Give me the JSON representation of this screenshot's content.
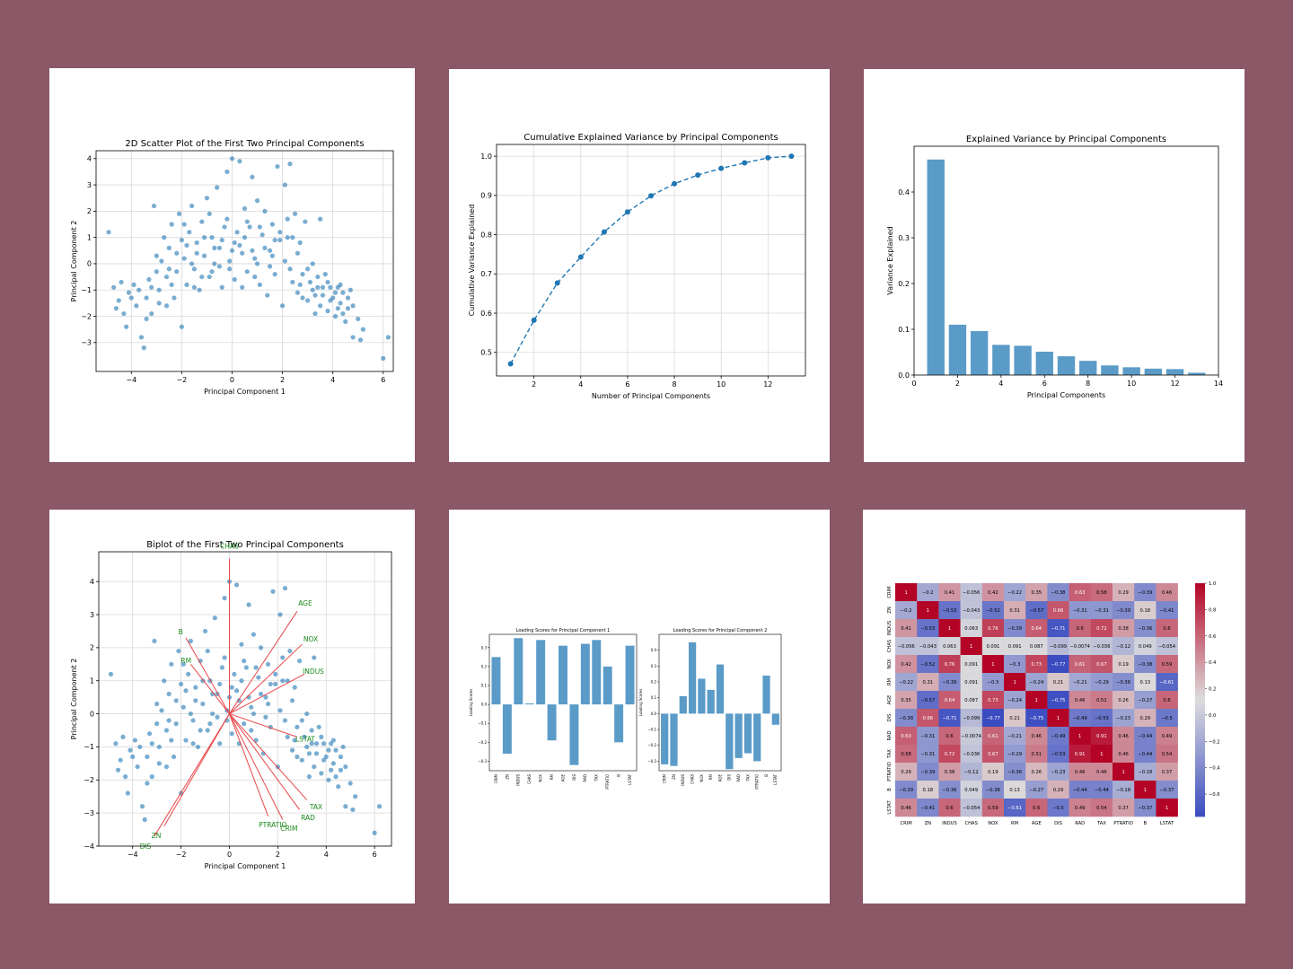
{
  "colors": {
    "background": "#8b5868",
    "point": "#1f77b4",
    "bar": "#5b9bc8",
    "arrow": "#e8474a",
    "arrow_label": "#1a8a1a"
  },
  "chart_data": [
    {
      "id": "scatter",
      "type": "scatter",
      "title": "2D Scatter Plot of the First Two Principal Components",
      "xlabel": "Principal Component 1",
      "ylabel": "Principal Component 2",
      "xlim": [
        -5.4,
        6.4
      ],
      "ylim": [
        -4.1,
        4.3
      ],
      "xticks": [
        -4,
        -2,
        0,
        2,
        4,
        6
      ],
      "xtick_labels": [
        "−4",
        "−2",
        "0",
        "2",
        "4",
        "6"
      ],
      "yticks": [
        -3,
        -2,
        -1,
        0,
        1,
        2,
        3,
        4
      ],
      "ytick_labels": [
        "−3",
        "−2",
        "−1",
        "0",
        "1",
        "2",
        "3",
        "4"
      ],
      "grid": true,
      "note": "~500 points forming an arch; approximate",
      "points": [
        [
          -4.9,
          1.2
        ],
        [
          -4.7,
          -0.9
        ],
        [
          -4.5,
          -1.4
        ],
        [
          -4.4,
          -0.7
        ],
        [
          -4.3,
          -1.9
        ],
        [
          -4.2,
          -2.4
        ],
        [
          -4.1,
          -1.1
        ],
        [
          -3.9,
          -0.8
        ],
        [
          -3.8,
          -1.6
        ],
        [
          -3.6,
          -2.8
        ],
        [
          -3.5,
          -3.2
        ],
        [
          -3.4,
          -1.3
        ],
        [
          -3.3,
          -0.6
        ],
        [
          -3.2,
          -1.9
        ],
        [
          -3.1,
          2.2
        ],
        [
          -3.0,
          -0.3
        ],
        [
          -2.9,
          -1.0
        ],
        [
          -2.8,
          0.1
        ],
        [
          -2.7,
          1.0
        ],
        [
          -2.6,
          -0.5
        ],
        [
          -2.5,
          0.6
        ],
        [
          -2.4,
          1.5
        ],
        [
          -2.3,
          -1.3
        ],
        [
          -2.2,
          0.4
        ],
        [
          -2.1,
          1.9
        ],
        [
          -2.0,
          -2.4
        ],
        [
          -1.9,
          0.2
        ],
        [
          -1.8,
          -0.8
        ],
        [
          -1.7,
          1.2
        ],
        [
          -1.6,
          2.2
        ],
        [
          -1.5,
          -0.2
        ],
        [
          -1.4,
          0.8
        ],
        [
          -1.3,
          -1.0
        ],
        [
          -1.2,
          1.6
        ],
        [
          -1.1,
          0.3
        ],
        [
          -1.0,
          2.5
        ],
        [
          -0.9,
          -0.5
        ],
        [
          -0.8,
          1.0
        ],
        [
          -0.7,
          0.0
        ],
        [
          -0.6,
          2.9
        ],
        [
          -0.5,
          0.6
        ],
        [
          -0.4,
          -0.9
        ],
        [
          -0.3,
          1.4
        ],
        [
          -0.2,
          3.5
        ],
        [
          -0.1,
          0.1
        ],
        [
          0.0,
          4.0
        ],
        [
          0.1,
          -0.6
        ],
        [
          0.2,
          1.2
        ],
        [
          0.3,
          3.9
        ],
        [
          0.4,
          0.4
        ],
        [
          0.5,
          2.1
        ],
        [
          0.6,
          -0.3
        ],
        [
          0.7,
          1.4
        ],
        [
          0.8,
          3.3
        ],
        [
          0.9,
          0.2
        ],
        [
          1.0,
          2.4
        ],
        [
          1.1,
          -0.8
        ],
        [
          1.2,
          1.1
        ],
        [
          1.3,
          2.0
        ],
        [
          1.4,
          -1.2
        ],
        [
          1.5,
          0.5
        ],
        [
          1.6,
          1.5
        ],
        [
          1.7,
          -0.4
        ],
        [
          1.8,
          3.7
        ],
        [
          1.9,
          0.9
        ],
        [
          2.0,
          -1.6
        ],
        [
          2.1,
          3.0
        ],
        [
          2.2,
          1.7
        ],
        [
          2.3,
          3.8
        ],
        [
          2.4,
          -0.7
        ],
        [
          2.5,
          1.9
        ],
        [
          2.6,
          -1.1
        ],
        [
          2.7,
          0.8
        ],
        [
          2.8,
          -0.4
        ],
        [
          2.9,
          1.6
        ],
        [
          3.0,
          -1.4
        ],
        [
          3.1,
          -0.7
        ],
        [
          3.2,
          0.0
        ],
        [
          3.3,
          -1.9
        ],
        [
          3.4,
          -0.9
        ],
        [
          3.5,
          1.7
        ],
        [
          3.6,
          -1.2
        ],
        [
          3.7,
          -0.4
        ],
        [
          3.8,
          -1.8
        ],
        [
          3.9,
          -0.9
        ],
        [
          4.0,
          -1.3
        ],
        [
          4.1,
          -2.0
        ],
        [
          4.2,
          -0.9
        ],
        [
          4.3,
          -1.5
        ],
        [
          4.4,
          -1.1
        ],
        [
          4.5,
          -2.2
        ],
        [
          4.6,
          -1.7
        ],
        [
          4.7,
          -1.0
        ],
        [
          4.8,
          -2.8
        ],
        [
          5.0,
          -2.1
        ],
        [
          5.1,
          -2.9
        ],
        [
          5.2,
          -2.5
        ],
        [
          6.0,
          -3.6
        ],
        [
          6.2,
          -2.8
        ],
        [
          -3.2,
          -0.9
        ],
        [
          -2.6,
          -1.6
        ],
        [
          -2.2,
          -0.3
        ],
        [
          -1.8,
          0.7
        ],
        [
          -1.5,
          -0.9
        ],
        [
          -1.1,
          1.0
        ],
        [
          -0.8,
          -0.3
        ],
        [
          -0.4,
          0.9
        ],
        [
          -0.1,
          -0.2
        ],
        [
          0.3,
          0.7
        ],
        [
          0.6,
          1.6
        ],
        [
          0.9,
          -0.5
        ],
        [
          1.3,
          0.6
        ],
        [
          1.7,
          0.9
        ],
        [
          2.1,
          0.1
        ],
        [
          2.4,
          1.0
        ],
        [
          2.8,
          -1.3
        ],
        [
          3.2,
          -1.0
        ],
        [
          3.5,
          -1.6
        ],
        [
          3.9,
          -1.4
        ],
        [
          4.2,
          -1.7
        ],
        [
          4.6,
          -1.3
        ],
        [
          -4.0,
          -1.3
        ],
        [
          -3.7,
          -1.0
        ],
        [
          -3.4,
          -2.1
        ],
        [
          -2.9,
          -1.5
        ],
        [
          -2.4,
          -0.8
        ],
        [
          -2.0,
          0.9
        ],
        [
          -1.6,
          0.0
        ],
        [
          -1.2,
          -0.5
        ],
        [
          -0.9,
          1.9
        ],
        [
          -0.5,
          -0.1
        ],
        [
          -0.2,
          1.7
        ],
        [
          0.1,
          0.8
        ],
        [
          0.4,
          -0.9
        ],
        [
          0.8,
          0.5
        ],
        [
          1.1,
          1.4
        ],
        [
          1.5,
          -0.1
        ],
        [
          1.9,
          1.2
        ],
        [
          2.3,
          -0.2
        ],
        [
          2.6,
          0.4
        ],
        [
          3.0,
          -0.2
        ],
        [
          3.4,
          -0.5
        ],
        [
          3.8,
          -0.7
        ],
        [
          4.1,
          -1.1
        ],
        [
          4.4,
          -1.9
        ],
        [
          -4.6,
          -1.7
        ],
        [
          -3.0,
          0.3
        ],
        [
          -2.5,
          -0.2
        ],
        [
          -1.9,
          1.5
        ],
        [
          -1.4,
          0.4
        ],
        [
          -0.7,
          0.6
        ],
        [
          0.0,
          0.5
        ],
        [
          0.5,
          1.0
        ],
        [
          1.0,
          0.0
        ],
        [
          1.6,
          0.3
        ],
        [
          2.2,
          1.0
        ],
        [
          2.7,
          -0.8
        ],
        [
          3.3,
          -1.2
        ],
        [
          3.6,
          -0.9
        ],
        [
          4.3,
          -0.8
        ],
        [
          4.8,
          -1.6
        ]
      ]
    },
    {
      "id": "cumvar",
      "type": "line",
      "title": "Cumulative Explained Variance by Principal Components",
      "xlabel": "Number of Principal Components",
      "ylabel": "Cumulative Variance Explained",
      "xlim": [
        0.4,
        13.6
      ],
      "ylim": [
        0.44,
        1.03
      ],
      "xticks": [
        2,
        4,
        6,
        8,
        10,
        12
      ],
      "yticks": [
        0.5,
        0.6,
        0.7,
        0.8,
        0.9,
        1.0
      ],
      "ytick_labels": [
        "0.5",
        "0.6",
        "0.7",
        "0.8",
        "0.9",
        "1.0"
      ],
      "grid": true,
      "x": [
        1,
        2,
        3,
        4,
        5,
        6,
        7,
        8,
        9,
        10,
        11,
        12,
        13
      ],
      "y": [
        0.471,
        0.582,
        0.677,
        0.743,
        0.807,
        0.858,
        0.899,
        0.93,
        0.952,
        0.969,
        0.983,
        0.996,
        1.0
      ]
    },
    {
      "id": "explvar",
      "type": "bar",
      "title": "Explained Variance by Principal Components",
      "xlabel": "Principal Components",
      "ylabel": "Variance Explained",
      "xlim": [
        0,
        14
      ],
      "ylim": [
        0,
        0.5
      ],
      "xticks": [
        0,
        2,
        4,
        6,
        8,
        10,
        12,
        14
      ],
      "yticks": [
        0.0,
        0.1,
        0.2,
        0.3,
        0.4
      ],
      "ytick_labels": [
        "0.0",
        "0.1",
        "0.2",
        "0.3",
        "0.4"
      ],
      "grid": false,
      "x": [
        1,
        2,
        3,
        4,
        5,
        6,
        7,
        8,
        9,
        10,
        11,
        12,
        13
      ],
      "values": [
        0.471,
        0.11,
        0.096,
        0.066,
        0.064,
        0.051,
        0.041,
        0.031,
        0.021,
        0.017,
        0.014,
        0.013,
        0.005
      ]
    },
    {
      "id": "biplot",
      "type": "scatter",
      "title": "Biplot of the First Two Principal Components",
      "xlabel": "Principal Component 1",
      "ylabel": "Principal Component 2",
      "xlim": [
        -5.4,
        6.7
      ],
      "ylim": [
        -4.0,
        4.9
      ],
      "xticks": [
        -4,
        -2,
        0,
        2,
        4,
        6
      ],
      "xtick_labels": [
        "−4",
        "−2",
        "0",
        "2",
        "4",
        "6"
      ],
      "yticks": [
        -4,
        -3,
        -2,
        -1,
        0,
        1,
        2,
        3,
        4
      ],
      "ytick_labels": [
        "−4",
        "−3",
        "−2",
        "−1",
        "0",
        "1",
        "2",
        "3",
        "4"
      ],
      "grid": true,
      "points_source": "same points as scatter plot",
      "arrows": [
        {
          "label": "CRIM",
          "x": 2.2,
          "y": -3.2
        },
        {
          "label": "ZN",
          "x": -2.7,
          "y": -3.4
        },
        {
          "label": "INDUS",
          "x": 3.1,
          "y": 1.2
        },
        {
          "label": "CHAS",
          "x": 0.0,
          "y": 4.7
        },
        {
          "label": "NOX",
          "x": 3.0,
          "y": 2.1
        },
        {
          "label": "RM",
          "x": -1.6,
          "y": 1.5
        },
        {
          "label": "AGE",
          "x": 2.8,
          "y": 3.1
        },
        {
          "label": "DIS",
          "x": -3.1,
          "y": -3.7
        },
        {
          "label": "RAD",
          "x": 2.9,
          "y": -2.9
        },
        {
          "label": "TAX",
          "x": 3.2,
          "y": -2.6
        },
        {
          "label": "PTRATIO",
          "x": 1.6,
          "y": -3.1
        },
        {
          "label": "B",
          "x": -1.8,
          "y": 2.3
        },
        {
          "label": "LSTAT",
          "x": 2.8,
          "y": -0.7
        }
      ]
    },
    {
      "id": "loadings",
      "type": "bar",
      "panels": [
        {
          "title": "Loading Scores for Principal Component 1",
          "ylabel": "Loading Scores",
          "ylim": [
            -0.35,
            0.37
          ],
          "yticks": [
            -0.3,
            -0.2,
            -0.1,
            0.0,
            0.1,
            0.2,
            0.3
          ],
          "ytick_labels": [
            "−0.3",
            "−0.2",
            "−0.1",
            "0.0",
            "0.1",
            "0.2",
            "0.3"
          ],
          "categories": [
            "CRIM",
            "ZN",
            "INDUS",
            "CHAS",
            "NOX",
            "RM",
            "AGE",
            "DIS",
            "RAD",
            "TAX",
            "PTRATIO",
            "B",
            "LSTAT"
          ],
          "values": [
            0.25,
            -0.26,
            0.35,
            0.005,
            0.34,
            -0.19,
            0.31,
            -0.32,
            0.32,
            0.34,
            0.2,
            -0.2,
            0.31
          ]
        },
        {
          "title": "Loading Scores for Principal Component 2",
          "ylabel": "Loading Scores",
          "ylim": [
            -0.36,
            0.5
          ],
          "yticks": [
            -0.3,
            -0.2,
            -0.1,
            0.0,
            0.1,
            0.2,
            0.3,
            0.4
          ],
          "ytick_labels": [
            "−0.3",
            "−0.2",
            "−0.1",
            "0.0",
            "0.1",
            "0.2",
            "0.3",
            "0.4"
          ],
          "categories": [
            "CRIM",
            "ZN",
            "INDUS",
            "CHAS",
            "NOX",
            "RM",
            "AGE",
            "DIS",
            "RAD",
            "TAX",
            "PTRATIO",
            "B",
            "LSTAT"
          ],
          "values": [
            -0.32,
            -0.33,
            0.11,
            0.45,
            0.22,
            0.15,
            0.31,
            -0.35,
            -0.28,
            -0.25,
            -0.3,
            0.24,
            -0.07
          ]
        }
      ]
    },
    {
      "id": "heatmap",
      "type": "heatmap",
      "labels": [
        "CRIM",
        "ZN",
        "INDUS",
        "CHAS",
        "NOX",
        "RM",
        "AGE",
        "DIS",
        "RAD",
        "TAX",
        "PTRATIO",
        "B",
        "LSTAT"
      ],
      "colorbar_ticks": [
        1.0,
        0.8,
        0.6,
        0.4,
        0.2,
        0.0,
        -0.2,
        -0.4,
        -0.6
      ],
      "colorbar_labels": [
        "1.0",
        "0.8",
        "0.6",
        "0.4",
        "0.2",
        "0.0",
        "−0.2",
        "−0.4",
        "−0.6"
      ],
      "vmin": -0.77,
      "vmax": 1.0,
      "matrix": [
        [
          1,
          -0.2,
          0.41,
          -0.056,
          0.42,
          -0.22,
          0.35,
          -0.38,
          0.63,
          0.58,
          0.29,
          -0.39,
          0.46
        ],
        [
          -0.2,
          1,
          -0.53,
          -0.043,
          -0.52,
          0.31,
          -0.57,
          0.66,
          -0.31,
          -0.31,
          -0.39,
          0.18,
          -0.41
        ],
        [
          0.41,
          -0.53,
          1,
          0.063,
          0.76,
          -0.39,
          0.64,
          -0.71,
          0.6,
          0.72,
          0.38,
          -0.36,
          0.6
        ],
        [
          -0.056,
          -0.043,
          0.063,
          1,
          0.091,
          0.091,
          0.087,
          -0.099,
          -0.0074,
          -0.036,
          -0.12,
          0.049,
          -0.054
        ],
        [
          0.42,
          -0.52,
          0.76,
          0.091,
          1,
          -0.3,
          0.73,
          -0.77,
          0.61,
          0.67,
          0.19,
          -0.38,
          0.59
        ],
        [
          -0.22,
          0.31,
          -0.39,
          0.091,
          -0.3,
          1,
          -0.24,
          0.21,
          -0.21,
          -0.29,
          -0.36,
          0.13,
          -0.61
        ],
        [
          0.35,
          -0.57,
          0.64,
          0.087,
          0.73,
          -0.24,
          1,
          -0.75,
          0.46,
          0.51,
          0.26,
          -0.27,
          0.6
        ],
        [
          -0.38,
          0.66,
          -0.71,
          -0.099,
          -0.77,
          0.21,
          -0.75,
          1,
          -0.49,
          -0.53,
          -0.23,
          0.29,
          -0.5
        ],
        [
          0.63,
          -0.31,
          0.6,
          -0.0074,
          0.61,
          -0.21,
          0.46,
          -0.49,
          1,
          0.91,
          0.46,
          -0.44,
          0.49
        ],
        [
          0.58,
          -0.31,
          0.72,
          -0.036,
          0.67,
          -0.29,
          0.51,
          -0.53,
          0.91,
          1,
          0.46,
          -0.44,
          0.54
        ],
        [
          0.29,
          -0.39,
          0.38,
          -0.12,
          0.19,
          -0.36,
          0.26,
          -0.23,
          0.46,
          0.46,
          1,
          -0.18,
          0.37
        ],
        [
          -0.39,
          0.18,
          -0.36,
          0.049,
          -0.38,
          0.13,
          -0.27,
          0.29,
          -0.44,
          -0.44,
          -0.18,
          1,
          -0.37
        ],
        [
          0.46,
          -0.41,
          0.6,
          -0.054,
          0.59,
          -0.61,
          0.6,
          -0.5,
          0.49,
          0.54,
          0.37,
          -0.37,
          1
        ]
      ]
    }
  ]
}
